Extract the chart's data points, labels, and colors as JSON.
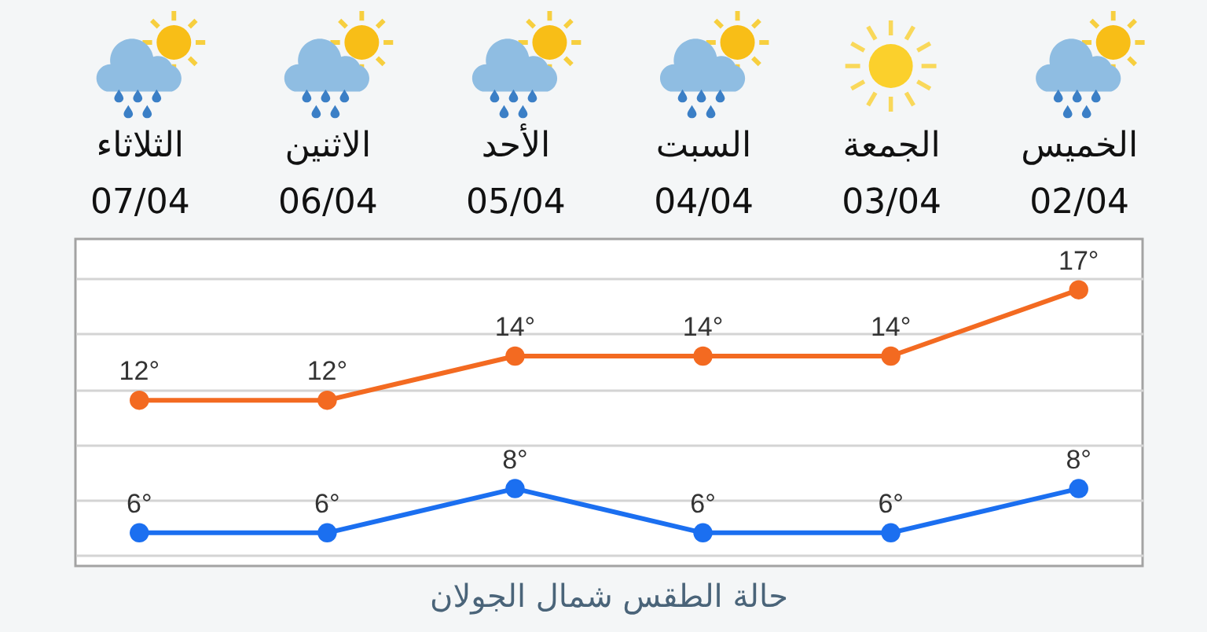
{
  "chart_data": {
    "type": "line",
    "title": "حالة الطقس شمال الجولان",
    "categories": [
      "الثلاثاء\n07/04",
      "الاثنين\n06/04",
      "الأحد\n05/04",
      "السبت\n04/04",
      "الجمعة\n03/04",
      "الخميس\n02/04"
    ],
    "series": [
      {
        "color": "#f36a21",
        "values": [
          12,
          12,
          14,
          14,
          14,
          17
        ],
        "value_labels": [
          "12°",
          "12°",
          "14°",
          "14°",
          "14°",
          "17°"
        ]
      },
      {
        "color": "#1b6ff0",
        "values": [
          6,
          6,
          8,
          6,
          6,
          8
        ],
        "value_labels": [
          "6°",
          "6°",
          "8°",
          "6°",
          "6°",
          "8°"
        ]
      }
    ],
    "ylim": [
      4.5,
      19.3
    ],
    "yticks": [
      {
        "value": 5,
        "label": null
      },
      {
        "value": 7.5,
        "label": null
      },
      {
        "value": 10,
        "label": null
      },
      {
        "value": 12.5,
        "label": null
      },
      {
        "value": 15,
        "label": null
      },
      {
        "value": 17.5,
        "label": null
      }
    ],
    "grid": "y",
    "tick_labels": "x",
    "marker": "circle",
    "line_style": "solid"
  }
}
